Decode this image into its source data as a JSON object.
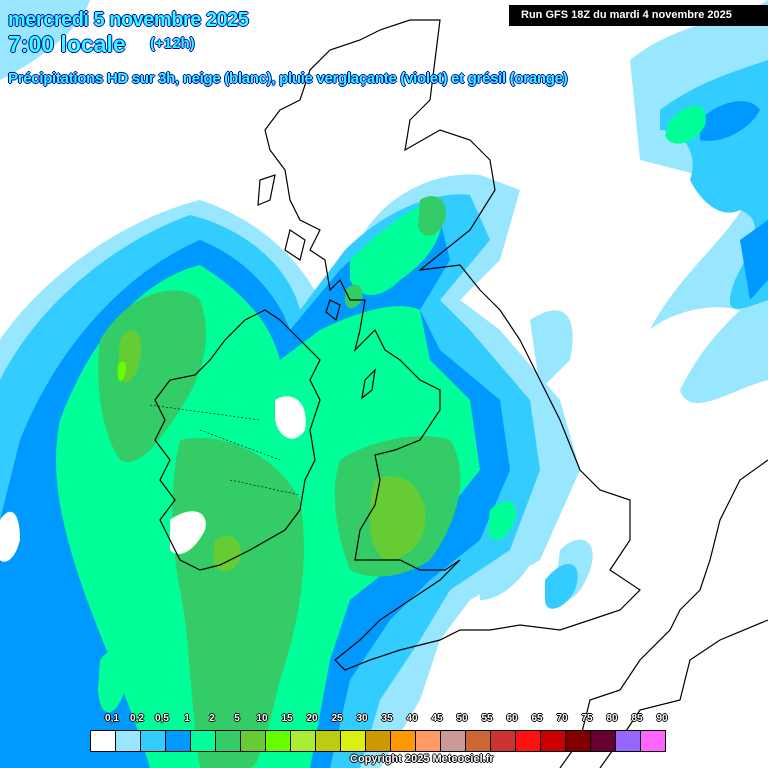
{
  "header": {
    "date": "mercredi 5 novembre 2025",
    "time": "7:00 locale",
    "offset": "(+12h)",
    "subtitle": "Précipitations HD sur 3h, neige (blanc), pluie verglaçante (violet) et grésil (orange)",
    "run": "Run GFS 18Z du mardi 4 novembre 2025"
  },
  "legend": {
    "labels": [
      "0,1",
      "0,2",
      "0,5",
      "1",
      "2",
      "5",
      "10",
      "15",
      "20",
      "25",
      "30",
      "35",
      "40",
      "45",
      "50",
      "55",
      "60",
      "65",
      "70",
      "75",
      "80",
      "85",
      "90"
    ],
    "colors": [
      "#ffffff",
      "#99e6ff",
      "#33ccff",
      "#0099ff",
      "#00ff99",
      "#33cc66",
      "#66cc33",
      "#66ff00",
      "#aaee33",
      "#bbcc11",
      "#ddee11",
      "#cc9900",
      "#ff9900",
      "#ff9966",
      "#cc9999",
      "#cc6633",
      "#cc3333",
      "#ff1111",
      "#cc0000",
      "#800000",
      "#660033",
      "#9966ff",
      "#ff66ff"
    ]
  },
  "copyright": "Copyright 2025 Meteociel.fr"
}
